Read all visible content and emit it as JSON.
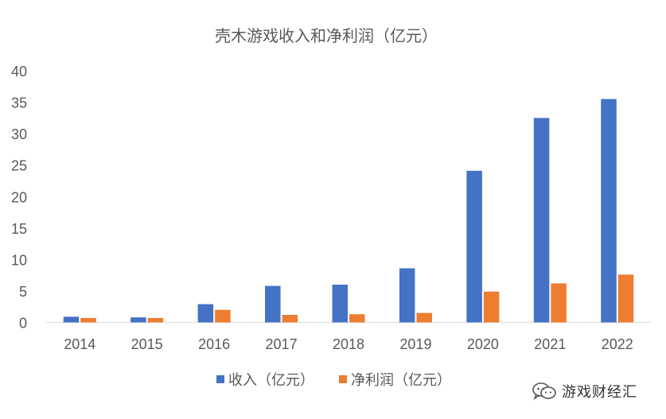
{
  "chart_data": {
    "type": "bar",
    "title": "壳木游戏收入和净利润（亿元）",
    "categories": [
      "2014",
      "2015",
      "2016",
      "2017",
      "2018",
      "2019",
      "2020",
      "2021",
      "2022"
    ],
    "series": [
      {
        "name": "收入（亿元）",
        "color": "#4472C4",
        "values": [
          0.9,
          0.8,
          2.9,
          5.8,
          6.0,
          8.6,
          24.1,
          32.5,
          35.5
        ]
      },
      {
        "name": "净利润（亿元）",
        "color": "#ED7D31",
        "values": [
          0.7,
          0.7,
          2.0,
          1.2,
          1.3,
          1.5,
          4.9,
          6.2,
          7.6
        ]
      }
    ],
    "yticks": [
      0,
      5,
      10,
      15,
      20,
      25,
      30,
      35,
      40
    ],
    "ylim": [
      0,
      40
    ],
    "xlabel": "",
    "ylabel": "",
    "grid": false,
    "legend": "bottom"
  },
  "watermark": {
    "text": "游戏财经汇",
    "icon": "wechat-icon"
  }
}
